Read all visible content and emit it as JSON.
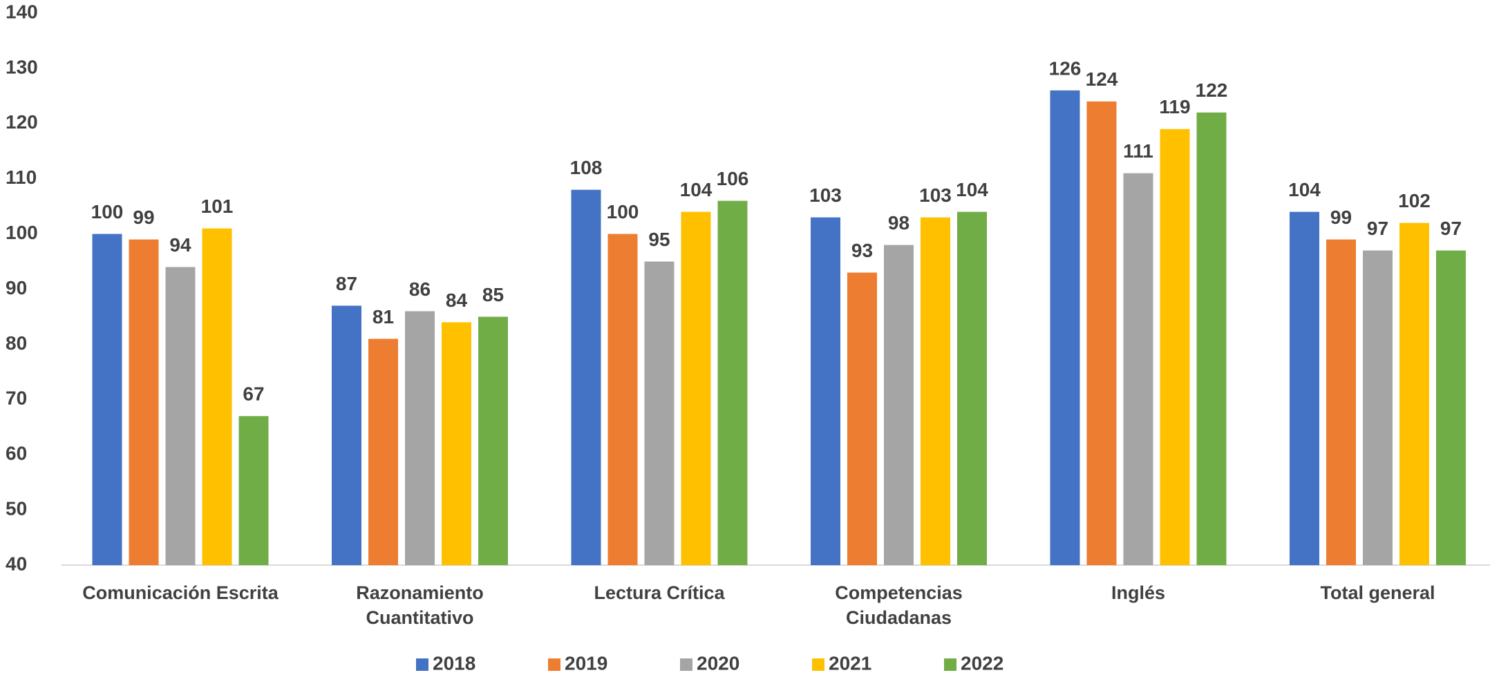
{
  "chart_data": {
    "type": "bar",
    "categories": [
      "Comunicación Escrita",
      "Razonamiento Cuantitativo",
      "Lectura Crítica",
      "Competencias Ciudadanas",
      "Inglés",
      "Total general"
    ],
    "series": [
      {
        "name": "2018",
        "color": "#4472c4",
        "values": [
          100,
          87,
          108,
          103,
          126,
          104
        ]
      },
      {
        "name": "2019",
        "color": "#ed7d31",
        "values": [
          99,
          81,
          100,
          93,
          124,
          99
        ]
      },
      {
        "name": "2020",
        "color": "#a5a5a5",
        "values": [
          94,
          86,
          95,
          98,
          111,
          97
        ]
      },
      {
        "name": "2021",
        "color": "#ffc000",
        "values": [
          101,
          84,
          104,
          103,
          119,
          102
        ]
      },
      {
        "name": "2022",
        "color": "#70ad47",
        "values": [
          67,
          85,
          106,
          104,
          122,
          97
        ]
      }
    ],
    "ylim": [
      40,
      140
    ],
    "yticks": [
      40,
      50,
      60,
      70,
      80,
      90,
      100,
      110,
      120,
      130,
      140
    ],
    "grid": false,
    "legend": "bottom"
  }
}
